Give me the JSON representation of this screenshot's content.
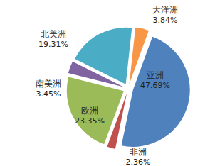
{
  "chart_data": {
    "type": "pie",
    "categories": [
      "亚洲",
      "非洲",
      "欧洲",
      "南美洲",
      "北美洲",
      "大洋洲"
    ],
    "values": [
      47.69,
      2.36,
      23.35,
      3.45,
      19.31,
      3.84
    ],
    "value_labels": [
      "47.69%",
      "2.36%",
      "23.35%",
      "3.45%",
      "19.31%",
      "3.84%"
    ],
    "colors": [
      "#4f81bd",
      "#c0504d",
      "#9bbb59",
      "#8064a2",
      "#4bacc6",
      "#f79646"
    ],
    "data_labels": true
  }
}
